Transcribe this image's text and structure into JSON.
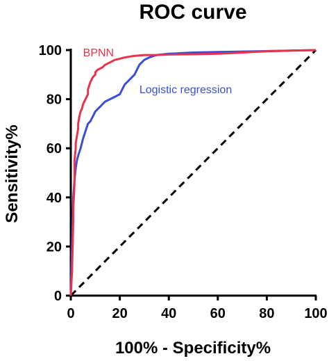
{
  "chart_data": {
    "type": "line",
    "title": "ROC curve",
    "xlabel": "100% - Specificity%",
    "ylabel": "Sensitivity%",
    "xlim": [
      0,
      100
    ],
    "ylim": [
      0,
      100
    ],
    "xticks": [
      0,
      20,
      40,
      60,
      80,
      100
    ],
    "yticks": [
      0,
      20,
      40,
      60,
      80,
      100
    ],
    "grid": false,
    "legend": "inline labels",
    "series": [
      {
        "name": "BPNN",
        "color": "#e8334a",
        "style": "solid",
        "x": [
          0,
          0.5,
          1,
          1,
          1.5,
          1.5,
          2,
          2,
          2.5,
          3,
          3,
          3.5,
          4,
          4.5,
          5,
          6,
          7,
          7,
          8,
          9,
          10,
          10,
          11,
          12,
          13,
          14,
          16,
          18,
          20,
          22,
          25,
          28,
          30,
          35,
          40,
          50,
          60,
          66,
          70,
          80,
          90,
          100
        ],
        "y": [
          0,
          10,
          30,
          35,
          45,
          55,
          60,
          62,
          65,
          68,
          70,
          73,
          75,
          76,
          78,
          80,
          82,
          84,
          87,
          89,
          90,
          91,
          92,
          92.5,
          93,
          94,
          95,
          96,
          96.5,
          97,
          97.5,
          97.8,
          98,
          98,
          98.2,
          98.3,
          98.5,
          98.8,
          99,
          99.5,
          99.8,
          100
        ]
      },
      {
        "name": "Logistic regression",
        "color": "#3a4fd8",
        "style": "solid",
        "x": [
          0,
          0.5,
          1,
          1.5,
          2,
          2.5,
          3,
          4,
          5,
          6,
          7,
          8,
          9,
          10,
          12,
          14,
          16,
          18,
          20,
          21,
          22,
          23,
          24,
          25,
          26,
          27,
          28,
          30,
          32,
          35,
          40,
          50,
          60,
          70,
          80,
          90,
          100
        ],
        "y": [
          0,
          20,
          40,
          47,
          52,
          55,
          57,
          60,
          64,
          67,
          70,
          71,
          73,
          75,
          77,
          79,
          80,
          81,
          82,
          84,
          86,
          87,
          88,
          89,
          90,
          92,
          94,
          96,
          97,
          98,
          98.5,
          99,
          99.2,
          99.4,
          99.6,
          99.8,
          100
        ]
      },
      {
        "name": "",
        "color": "#000000",
        "style": "dashed",
        "x": [
          0,
          100
        ],
        "y": [
          0,
          100
        ]
      }
    ],
    "labels": [
      {
        "text": "BPNN",
        "series": 0,
        "x": 5,
        "y": 97.5
      },
      {
        "text": "Logistic regression",
        "series": 1,
        "x": 28,
        "y": 82.5
      }
    ]
  }
}
